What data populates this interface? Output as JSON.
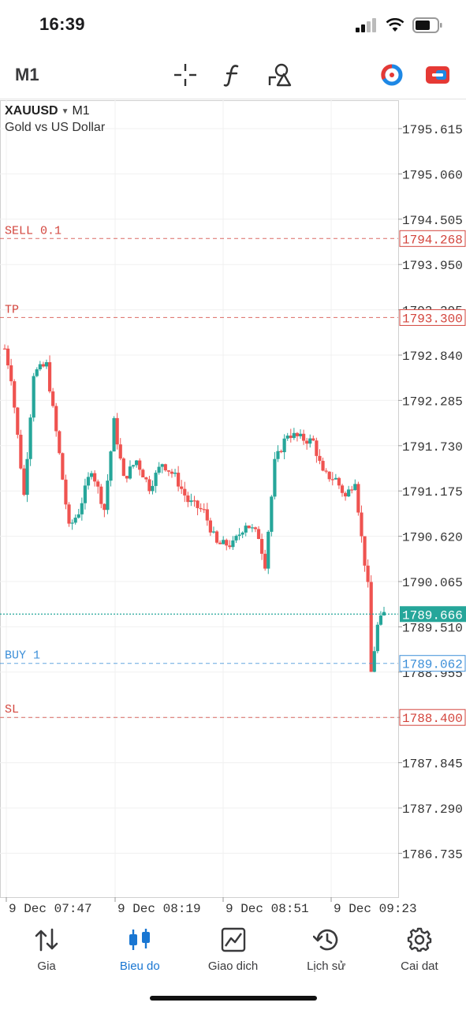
{
  "status_bar": {
    "time": "16:39"
  },
  "toolbar": {
    "timeframe": "M1",
    "tools": [
      "crosshair-icon",
      "indicator-f-icon",
      "objects-icon"
    ],
    "right_icons": [
      "one-click-trading-icon",
      "trade-panel-icon"
    ]
  },
  "chart": {
    "symbol": "XAUUSD",
    "timeframe": "M1",
    "description": "Gold vs US Dollar",
    "price_levels": [
      "1795.615",
      "1795.060",
      "1794.505",
      "1793.950",
      "1793.395",
      "1792.840",
      "1792.285",
      "1791.730",
      "1791.175",
      "1790.620",
      "1790.065",
      "1789.510",
      "1788.955",
      "1788.400",
      "1787.845",
      "1787.290",
      "1786.735"
    ],
    "time_labels": [
      "9 Dec 07:47",
      "9 Dec 08:19",
      "9 Dec 08:51",
      "9 Dec 09:23"
    ],
    "orders": [
      {
        "label": "SELL 0.1",
        "price": "1794.268",
        "color": "#d3453d",
        "y": 1794.268
      },
      {
        "label": "TP",
        "price": "1793.300",
        "color": "#d3453d",
        "y": 1793.3
      },
      {
        "label": "BUY 1",
        "price": "1789.062",
        "color": "#3c8fd8",
        "y": 1789.062
      },
      {
        "label": "SL",
        "price": "1788.400",
        "color": "#d3453d",
        "y": 1788.4
      }
    ],
    "current_price": {
      "value": "1789.666",
      "y": 1789.666,
      "color": "#26a69a"
    },
    "ylim": [
      1786.3,
      1796.1
    ],
    "bull_color": "#26a69a",
    "bear_color": "#ef5350"
  },
  "nav": {
    "items": [
      {
        "label": "Gia",
        "icon": "quotes-arrows-icon",
        "active": false
      },
      {
        "label": "Bieu do",
        "icon": "chart-candles-icon",
        "active": true
      },
      {
        "label": "Giao dich",
        "icon": "trade-chart-icon",
        "active": false
      },
      {
        "label": "Lịch sử",
        "icon": "history-clock-icon",
        "active": false
      },
      {
        "label": "Cai dat",
        "icon": "settings-gear-icon",
        "active": false
      }
    ]
  }
}
